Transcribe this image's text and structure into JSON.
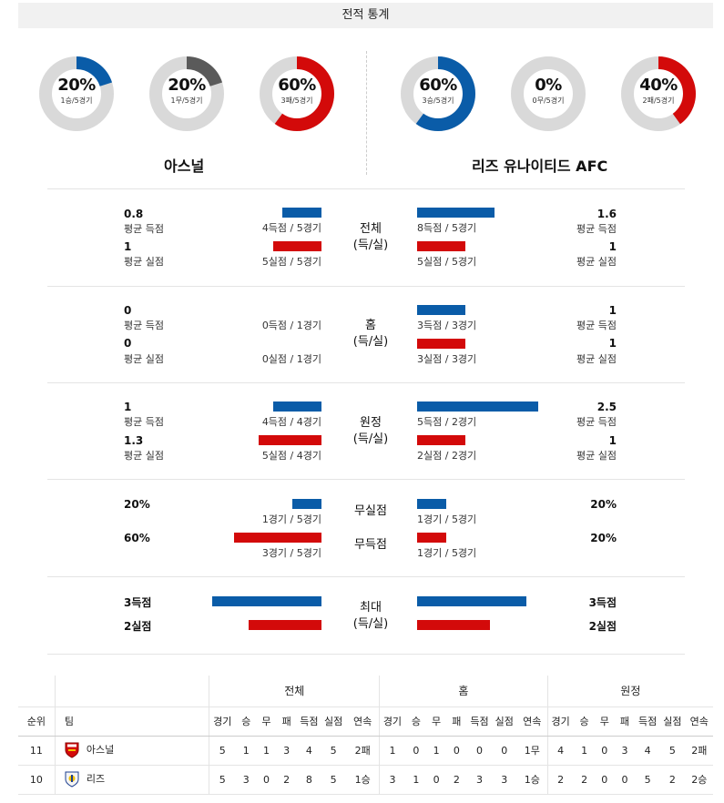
{
  "title": "전적 통계",
  "colors": {
    "blue": "#0a5ca8",
    "red": "#d30a0a",
    "gray": "#5a5a5a",
    "track": "#d9d9d9"
  },
  "home": {
    "name": "아스널",
    "donuts": [
      {
        "pct": "20%",
        "sub": "1승/5경기",
        "fraction": 0.2,
        "color": "blue"
      },
      {
        "pct": "20%",
        "sub": "1무/5경기",
        "fraction": 0.2,
        "color": "gray"
      },
      {
        "pct": "60%",
        "sub": "3패/5경기",
        "fraction": 0.6,
        "color": "red"
      }
    ]
  },
  "away": {
    "name": "리즈 유나이티드 AFC",
    "donuts": [
      {
        "pct": "60%",
        "sub": "3승/5경기",
        "fraction": 0.6,
        "color": "blue"
      },
      {
        "pct": "0%",
        "sub": "0무/5경기",
        "fraction": 0.0,
        "color": "gray"
      },
      {
        "pct": "40%",
        "sub": "2패/5경기",
        "fraction": 0.4,
        "color": "red"
      }
    ]
  },
  "sections": {
    "total": {
      "label1": "전체",
      "label2": "(득/실)",
      "home_scored_val": "0.8",
      "home_scored_lbl": "평균 득점",
      "home_scored_cap": "4득점 / 5경기",
      "home_conceded_val": "1",
      "home_conceded_lbl": "평균 실점",
      "home_conceded_cap": "5실점 / 5경기",
      "away_scored_val": "1.6",
      "away_scored_lbl": "평균 득점",
      "away_scored_cap": "8득점 / 5경기",
      "away_conceded_val": "1",
      "away_conceded_lbl": "평균 실점",
      "away_conceded_cap": "5실점 / 5경기"
    },
    "home": {
      "label1": "홈",
      "label2": "(득/실)",
      "home_scored_val": "0",
      "home_scored_lbl": "평균 득점",
      "home_scored_cap": "0득점 / 1경기",
      "home_conceded_val": "0",
      "home_conceded_lbl": "평균 실점",
      "home_conceded_cap": "0실점 / 1경기",
      "away_scored_val": "1",
      "away_scored_lbl": "평균 득점",
      "away_scored_cap": "3득점 / 3경기",
      "away_conceded_val": "1",
      "away_conceded_lbl": "평균 실점",
      "away_conceded_cap": "3실점 / 3경기"
    },
    "away": {
      "label1": "원정",
      "label2": "(득/실)",
      "home_scored_val": "1",
      "home_scored_lbl": "평균 득점",
      "home_scored_cap": "4득점 / 4경기",
      "home_conceded_val": "1.3",
      "home_conceded_lbl": "평균 실점",
      "home_conceded_cap": "5실점 / 4경기",
      "away_scored_val": "2.5",
      "away_scored_lbl": "평균 득점",
      "away_scored_cap": "5득점 / 2경기",
      "away_conceded_val": "1",
      "away_conceded_lbl": "평균 실점",
      "away_conceded_cap": "2실점 / 2경기"
    },
    "clean": {
      "cs_label": "무실점",
      "fts_label": "무득점",
      "home_cs_val": "20%",
      "home_cs_cap": "1경기 / 5경기",
      "home_fts_val": "60%",
      "home_fts_cap": "3경기 / 5경기",
      "away_cs_val": "20%",
      "away_cs_cap": "1경기 / 5경기",
      "away_fts_val": "20%",
      "away_fts_cap": "1경기 / 5경기"
    },
    "max": {
      "label1": "최대",
      "label2": "(득/실)",
      "home_scored": "3득점",
      "home_conceded": "2실점",
      "away_scored": "3득점",
      "away_conceded": "2실점"
    }
  },
  "table": {
    "groups": [
      "전체",
      "홈",
      "원정"
    ],
    "rank_header": "순위",
    "team_header": "팀",
    "cols": [
      "경기",
      "승",
      "무",
      "패",
      "득점",
      "실점",
      "연속"
    ],
    "rows": [
      {
        "rank": "11",
        "team": "아스널",
        "crest": "arsenal-crest-icon",
        "total": [
          "5",
          "1",
          "1",
          "3",
          "4",
          "5",
          "2패"
        ],
        "home": [
          "1",
          "0",
          "1",
          "0",
          "0",
          "0",
          "1무"
        ],
        "away": [
          "4",
          "1",
          "0",
          "3",
          "4",
          "5",
          "2패"
        ]
      },
      {
        "rank": "10",
        "team": "리즈",
        "crest": "leeds-crest-icon",
        "total": [
          "5",
          "3",
          "0",
          "2",
          "8",
          "5",
          "1승"
        ],
        "home": [
          "3",
          "1",
          "0",
          "2",
          "3",
          "3",
          "1승"
        ],
        "away": [
          "2",
          "2",
          "0",
          "0",
          "5",
          "2",
          "2승"
        ]
      }
    ]
  }
}
